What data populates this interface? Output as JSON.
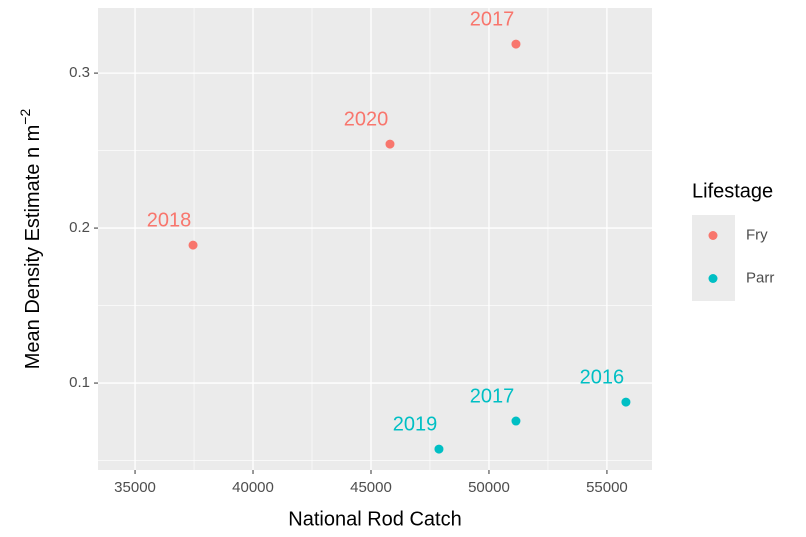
{
  "chart_data": {
    "type": "scatter",
    "xlabel": "National Rod Catch",
    "ylabel": "Mean Density Estimate n m",
    "ylabel_sup": "−2",
    "legend_title": "Lifestage",
    "legend_position": "right",
    "grid": true,
    "minor_grid": true,
    "xlim": [
      33430,
      56910
    ],
    "ylim": [
      0.0439,
      0.342
    ],
    "xticks": [
      35000,
      40000,
      45000,
      50000,
      55000
    ],
    "yticks": [
      0.1,
      0.2,
      0.3
    ],
    "series": [
      {
        "name": "Fry",
        "color": "#f8766d",
        "x": [
          51144,
          45805,
          37458
        ],
        "values": [
          0.3187,
          0.2542,
          0.189
        ],
        "labels": [
          "2017",
          "2020",
          "2018"
        ]
      },
      {
        "name": "Parr",
        "color": "#00bfc4",
        "x": [
          47881,
          51144,
          55805
        ],
        "values": [
          0.0574,
          0.0755,
          0.0877
        ],
        "labels": [
          "2019",
          "2017",
          "2016"
        ]
      }
    ]
  }
}
